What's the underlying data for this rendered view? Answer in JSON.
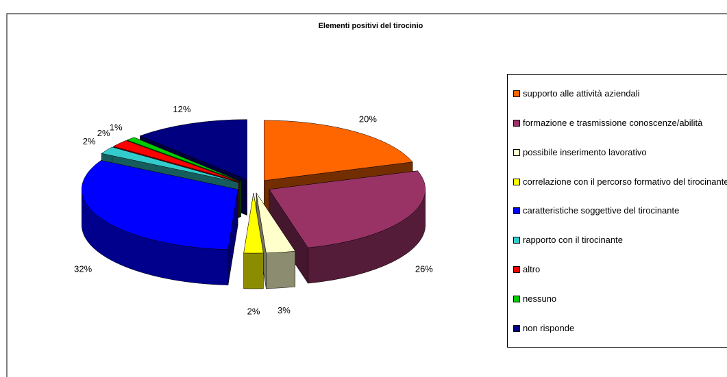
{
  "chart_data": {
    "type": "pie3d",
    "title": "Elementi positivi del tirocinio",
    "categories": [
      "supporto alle attività aziendali",
      "formazione e trasmissione conoscenze/abilità",
      "possibile inserimento lavorativo",
      "correlazione con il percorso formativo del tirocinante",
      "caratteristiche soggettive del tirocinante",
      "rapporto con il tirocinante",
      "altro",
      "nessuno",
      "non risponde"
    ],
    "values": [
      20,
      26,
      3,
      2,
      32,
      2,
      2,
      1,
      12
    ],
    "value_labels": [
      "20%",
      "26%",
      "3%",
      "2%",
      "32%",
      "2%",
      "2%",
      "1%",
      "12%"
    ],
    "colors": [
      "#ff6600",
      "#993366",
      "#ffffcc",
      "#ffff00",
      "#0000ff",
      "#33cccc",
      "#ff0000",
      "#00cc00",
      "#000080"
    ],
    "legend": "right"
  }
}
